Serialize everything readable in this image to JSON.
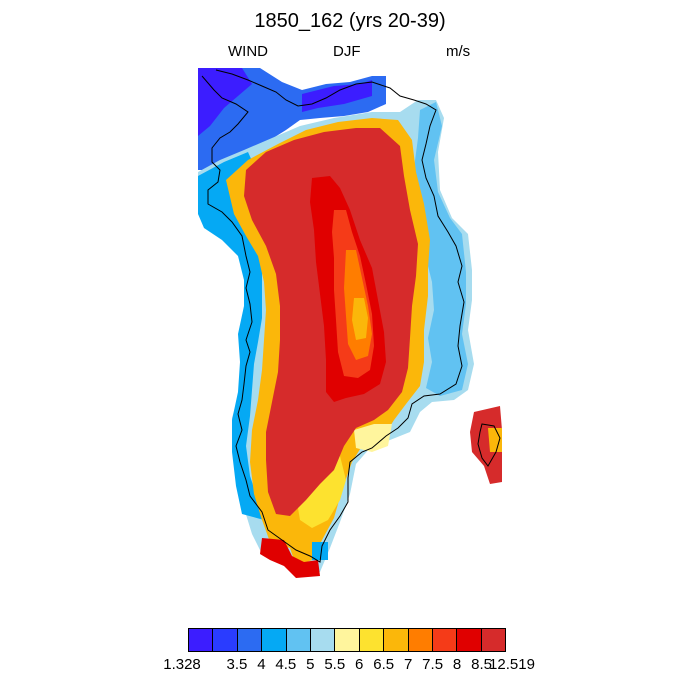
{
  "figure": {
    "title": "1850_162 (yrs 20-39)",
    "left_label": "WIND",
    "center_label": "DJF",
    "right_label": "m/s"
  },
  "colorbar": {
    "colors": [
      "#3c1dff",
      "#2a3cff",
      "#2c6bf2",
      "#05a9f4",
      "#61c2f2",
      "#a7dcef",
      "#fff59d",
      "#fde22f",
      "#fbb70a",
      "#ff7d00",
      "#f53b18",
      "#e00000",
      "#d62b2b"
    ],
    "labels": [
      "1.328",
      "3.5",
      "4",
      "4.5",
      "5",
      "5.5",
      "6",
      "6.5",
      "7",
      "7.5",
      "8",
      "8.5",
      "12.519"
    ]
  },
  "map": {
    "colors": {
      "deep_blue": "#3c1dff",
      "blue": "#2c6bf2",
      "cyan": "#05a9f4",
      "light_blue": "#61c2f2",
      "pale_blue": "#a7dcef",
      "pale_yellow": "#fff59d",
      "yellow": "#fde22f",
      "orange_yellow": "#fbb70a",
      "orange": "#ff7d00",
      "red_orange": "#f53b18",
      "red": "#e00000",
      "dark_red": "#d62b2b"
    }
  }
}
